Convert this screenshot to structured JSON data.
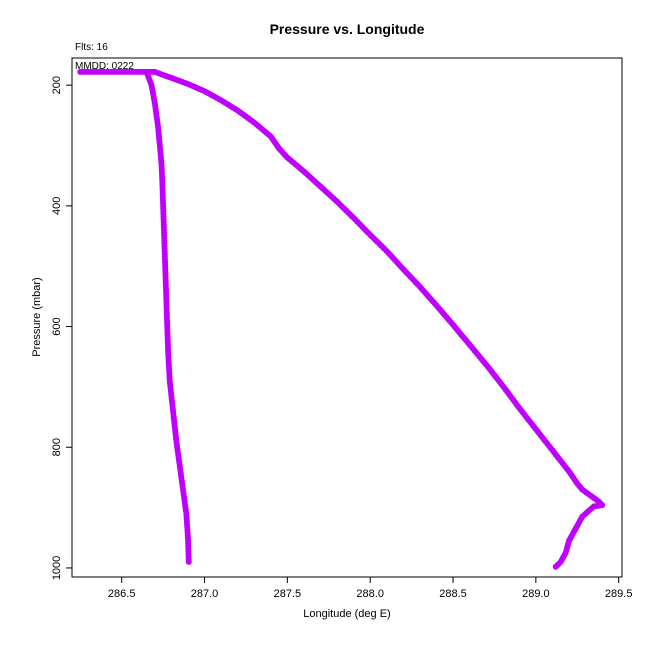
{
  "chart_data": {
    "type": "scatter",
    "title": "Pressure vs. Longitude",
    "xlabel": "Longitude (deg E)",
    "ylabel": "Pressure (mbar)",
    "annotations": [
      "Flts: 16",
      "MMDD: 0222"
    ],
    "xlim": [
      286.2,
      289.52
    ],
    "ylim": [
      1015,
      155
    ],
    "x_ticks": [
      286.5,
      287.0,
      287.5,
      288.0,
      288.5,
      289.0,
      289.5
    ],
    "x_tick_labels": [
      "286.5",
      "287.0",
      "287.5",
      "288.0",
      "288.5",
      "289.0",
      "289.5"
    ],
    "y_ticks": [
      200,
      400,
      600,
      800,
      1000
    ],
    "y_tick_labels": [
      "200",
      "400",
      "600",
      "800",
      "1000"
    ],
    "grid": false,
    "point_color": "#bf00ff",
    "series": [
      {
        "points": [
          [
            286.25,
            178
          ],
          [
            286.35,
            178
          ],
          [
            286.45,
            178
          ],
          [
            286.55,
            178
          ],
          [
            286.64,
            178
          ],
          [
            286.7,
            178
          ],
          [
            286.8,
            188
          ],
          [
            286.9,
            198
          ],
          [
            287.0,
            210
          ],
          [
            287.1,
            225
          ],
          [
            287.2,
            242
          ],
          [
            287.3,
            262
          ],
          [
            287.4,
            285
          ],
          [
            287.45,
            305
          ],
          [
            287.5,
            320
          ],
          [
            287.6,
            343
          ],
          [
            287.7,
            368
          ],
          [
            287.8,
            393
          ],
          [
            287.9,
            420
          ],
          [
            288.0,
            448
          ],
          [
            288.1,
            475
          ],
          [
            288.2,
            505
          ],
          [
            288.3,
            534
          ],
          [
            288.4,
            565
          ],
          [
            288.5,
            597
          ],
          [
            288.6,
            630
          ],
          [
            288.7,
            663
          ],
          [
            288.8,
            698
          ],
          [
            288.9,
            735
          ],
          [
            289.0,
            770
          ],
          [
            289.1,
            805
          ],
          [
            289.2,
            840
          ],
          [
            289.25,
            860
          ],
          [
            289.28,
            870
          ],
          [
            289.33,
            880
          ],
          [
            289.38,
            890
          ],
          [
            289.4,
            896
          ],
          [
            289.35,
            898
          ],
          [
            289.28,
            915
          ],
          [
            289.25,
            930
          ],
          [
            289.2,
            955
          ],
          [
            289.18,
            975
          ],
          [
            289.15,
            990
          ],
          [
            289.12,
            998
          ]
        ]
      },
      {
        "points": [
          [
            286.65,
            178
          ],
          [
            286.68,
            200
          ],
          [
            286.7,
            230
          ],
          [
            286.72,
            270
          ],
          [
            286.73,
            300
          ],
          [
            286.74,
            330
          ],
          [
            286.745,
            360
          ],
          [
            286.75,
            400
          ],
          [
            286.755,
            440
          ],
          [
            286.76,
            480
          ],
          [
            286.765,
            520
          ],
          [
            286.77,
            560
          ],
          [
            286.775,
            600
          ],
          [
            286.78,
            640
          ],
          [
            286.79,
            690
          ],
          [
            286.81,
            740
          ],
          [
            286.83,
            790
          ],
          [
            286.85,
            830
          ],
          [
            286.87,
            870
          ],
          [
            286.89,
            910
          ],
          [
            286.9,
            950
          ],
          [
            286.905,
            990
          ]
        ]
      }
    ]
  }
}
